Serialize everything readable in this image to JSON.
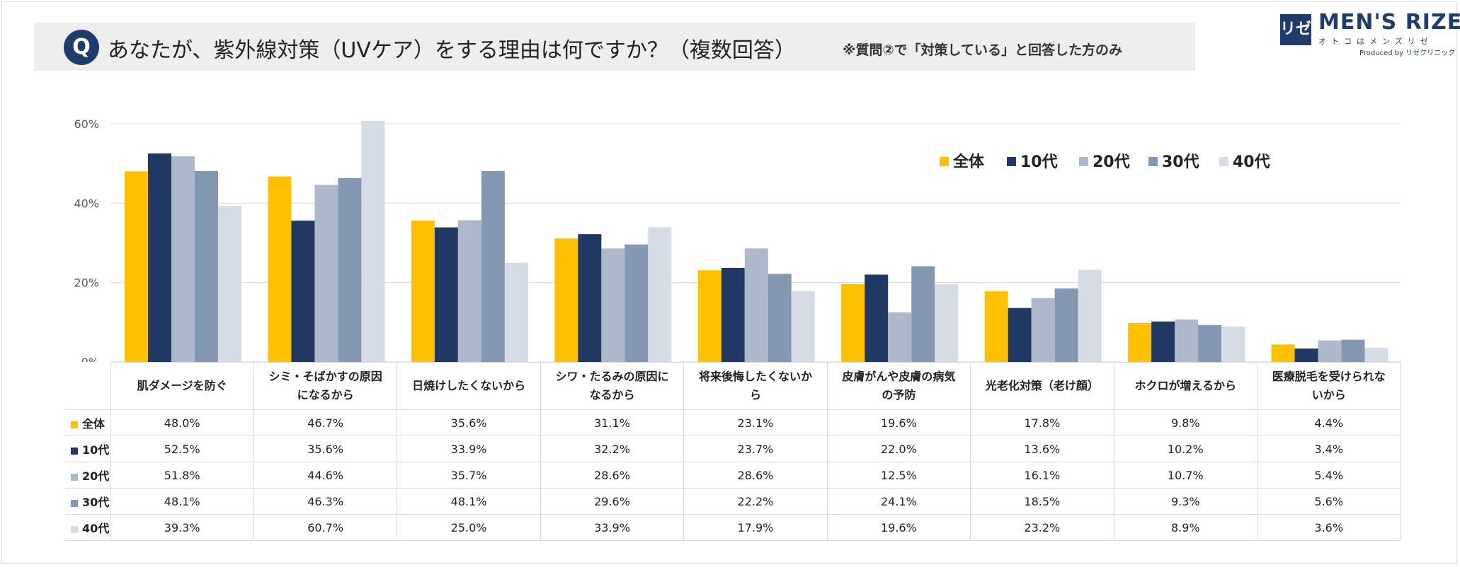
{
  "header": {
    "q_mark": "Q",
    "question": "あなたが、紫外線対策（UVケア）をする理由は何ですか？（複数回答）",
    "note": "※質問②で「対策している」と回答した方のみ"
  },
  "logo": {
    "mark": "リゼ",
    "name": "MEN'S RIZE",
    "sub": "オトコはメンズリゼ",
    "produced": "Produced by リゼクリニック"
  },
  "chart_data": {
    "type": "bar",
    "categories": [
      "肌ダメージを防ぐ",
      "シミ・そばかすの原因になるから",
      "日焼けしたくないから",
      "シワ・たるみの原因になるから",
      "将来後悔したくないから",
      "皮膚がんや皮膚の病気の予防",
      "光老化対策（老け顔）",
      "ホクロが増えるから",
      "医療脱毛を受けられないから"
    ],
    "category_lines": [
      [
        "肌ダメージを防ぐ"
      ],
      [
        "シミ・そばかすの原因",
        "になるから"
      ],
      [
        "日焼けしたくないから"
      ],
      [
        "シワ・たるみの原因に",
        "なるから"
      ],
      [
        "将来後悔したくないか",
        "ら"
      ],
      [
        "皮膚がんや皮膚の病気",
        "の予防"
      ],
      [
        "光老化対策（老け顔）"
      ],
      [
        "ホクロが増えるから"
      ],
      [
        "医療脱毛を受けられな",
        "いから"
      ]
    ],
    "series": [
      {
        "name": "全体",
        "color": "#ffc000",
        "values": [
          48.0,
          46.7,
          35.6,
          31.1,
          23.1,
          19.6,
          17.8,
          9.8,
          4.4
        ],
        "labels": [
          "48.0%",
          "46.7%",
          "35.6%",
          "31.1%",
          "23.1%",
          "19.6%",
          "17.8%",
          "9.8%",
          "4.4%"
        ]
      },
      {
        "name": "10代",
        "color": "#203864",
        "values": [
          52.5,
          35.6,
          33.9,
          32.2,
          23.7,
          22.0,
          13.6,
          10.2,
          3.4
        ],
        "labels": [
          "52.5%",
          "35.6%",
          "33.9%",
          "32.2%",
          "23.7%",
          "22.0%",
          "13.6%",
          "10.2%",
          "3.4%"
        ]
      },
      {
        "name": "20代",
        "color": "#adb9ca",
        "values": [
          51.8,
          44.6,
          35.7,
          28.6,
          28.6,
          12.5,
          16.1,
          10.7,
          5.4
        ],
        "labels": [
          "51.8%",
          "44.6%",
          "35.7%",
          "28.6%",
          "28.6%",
          "12.5%",
          "16.1%",
          "10.7%",
          "5.4%"
        ]
      },
      {
        "name": "30代",
        "color": "#8497b0",
        "values": [
          48.1,
          46.3,
          48.1,
          29.6,
          22.2,
          24.1,
          18.5,
          9.3,
          5.6
        ],
        "labels": [
          "48.1%",
          "46.3%",
          "48.1%",
          "29.6%",
          "22.2%",
          "24.1%",
          "18.5%",
          "9.3%",
          "5.6%"
        ]
      },
      {
        "name": "40代",
        "color": "#d6dce5",
        "values": [
          39.3,
          60.7,
          25.0,
          33.9,
          17.9,
          19.6,
          23.2,
          8.9,
          3.6
        ],
        "labels": [
          "39.3%",
          "60.7%",
          "25.0%",
          "33.9%",
          "17.9%",
          "19.6%",
          "23.2%",
          "8.9%",
          "3.6%"
        ]
      }
    ],
    "yticks": [
      "0%",
      "20%",
      "40%",
      "60%"
    ],
    "ytick_values": [
      0,
      20,
      40,
      60
    ],
    "ylim": [
      0,
      60
    ],
    "grid": true,
    "legend_position": "top-right"
  }
}
